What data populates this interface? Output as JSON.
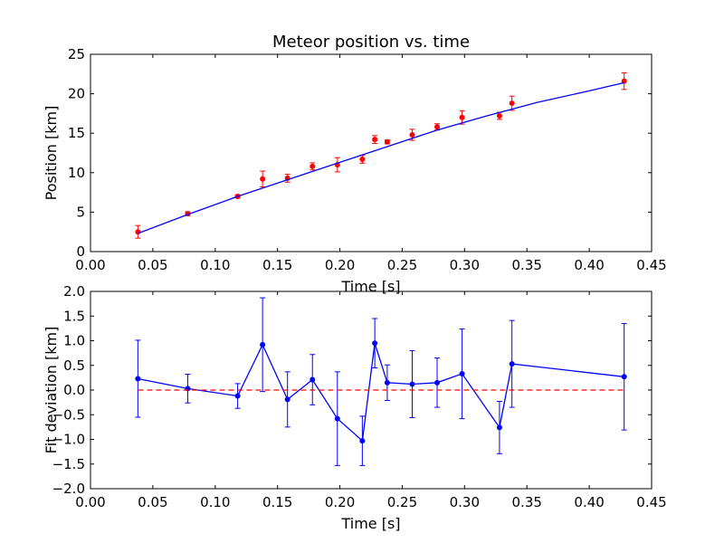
{
  "colors": {
    "fit": "#0000ff",
    "measurement": "#ff0000",
    "zero": "#ff0000",
    "deviation": "#0000ff"
  },
  "chart_data": [
    {
      "type": "scatter",
      "title": "Meteor position vs. time",
      "xlabel": "Time [s]",
      "ylabel": "Position [km]",
      "xlim": [
        0.0,
        0.45
      ],
      "ylim": [
        0,
        25
      ],
      "x_ticks": [
        "0.00",
        "0.05",
        "0.10",
        "0.15",
        "0.20",
        "0.25",
        "0.30",
        "0.35",
        "0.40",
        "0.45"
      ],
      "y_ticks": [
        "0",
        "5",
        "10",
        "15",
        "20",
        "25"
      ],
      "grid": false,
      "series": [
        {
          "kind": "errorbar-scatter",
          "x": [
            0.038,
            0.078,
            0.118,
            0.138,
            0.158,
            0.178,
            0.198,
            0.218,
            0.228,
            0.238,
            0.258,
            0.278,
            0.298,
            0.328,
            0.338,
            0.428
          ],
          "y": [
            2.5,
            4.8,
            7.0,
            9.2,
            9.3,
            10.8,
            11.0,
            11.7,
            14.2,
            13.9,
            14.8,
            15.8,
            17.0,
            17.2,
            18.8,
            21.6
          ],
          "err": [
            0.8,
            0.25,
            0.2,
            1.0,
            0.5,
            0.45,
            0.9,
            0.5,
            0.5,
            0.25,
            0.7,
            0.4,
            0.85,
            0.45,
            0.9,
            1.05
          ]
        },
        {
          "kind": "line",
          "x": [
            0.038,
            0.078,
            0.118,
            0.158,
            0.198,
            0.238,
            0.278,
            0.318,
            0.358,
            0.398,
            0.428
          ],
          "y": [
            2.3,
            4.7,
            7.0,
            9.1,
            11.2,
            13.3,
            15.4,
            17.2,
            18.9,
            20.3,
            21.4
          ]
        }
      ]
    },
    {
      "type": "line",
      "xlabel": "Time [s]",
      "ylabel": "Fit deviation [km]",
      "xlim": [
        0.0,
        0.45
      ],
      "ylim": [
        -2.0,
        2.0
      ],
      "x_ticks": [
        "0.00",
        "0.05",
        "0.10",
        "0.15",
        "0.20",
        "0.25",
        "0.30",
        "0.35",
        "0.40",
        "0.45"
      ],
      "y_ticks": [
        "−2.0",
        "−1.5",
        "−1.0",
        "−0.5",
        "0.0",
        "0.5",
        "1.0",
        "1.5",
        "2.0"
      ],
      "grid": false,
      "series": [
        {
          "kind": "errorbar-line",
          "x": [
            0.038,
            0.078,
            0.118,
            0.138,
            0.158,
            0.178,
            0.198,
            0.218,
            0.228,
            0.238,
            0.258,
            0.278,
            0.298,
            0.328,
            0.338,
            0.428
          ],
          "y": [
            0.23,
            0.03,
            -0.12,
            0.92,
            -0.19,
            0.21,
            -0.58,
            -1.03,
            0.95,
            0.15,
            0.12,
            0.15,
            0.33,
            -0.76,
            0.53,
            0.27
          ],
          "err": [
            0.78,
            0.29,
            0.25,
            0.95,
            0.56,
            0.51,
            0.95,
            0.5,
            0.5,
            0.36,
            0.68,
            0.5,
            0.91,
            0.53,
            0.88,
            1.08
          ]
        },
        {
          "kind": "dashed-hline",
          "x": [
            0.038,
            0.428
          ],
          "y": [
            0.0,
            0.0
          ]
        }
      ]
    }
  ]
}
